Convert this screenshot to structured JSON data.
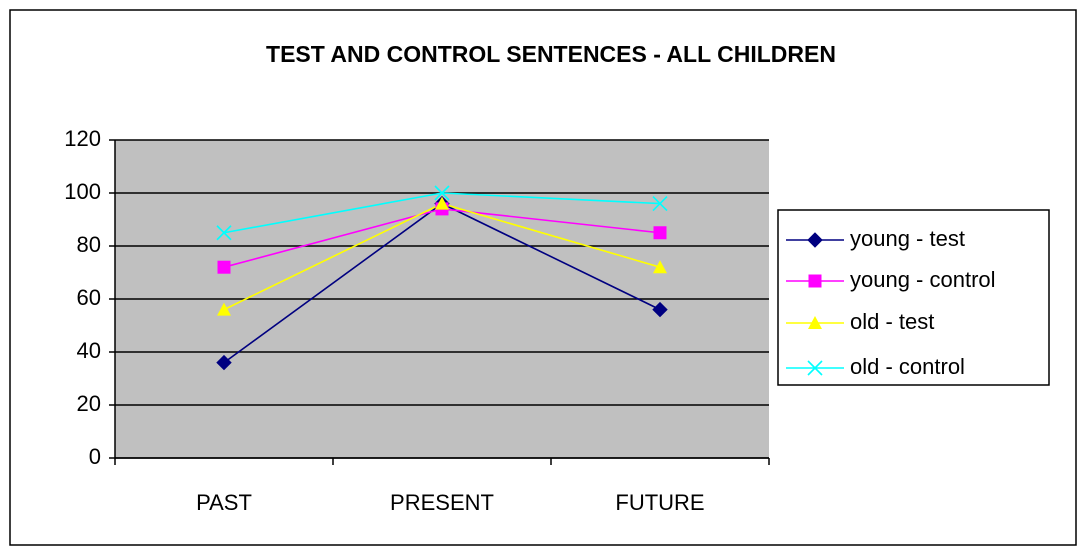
{
  "chart_data": {
    "type": "line",
    "title": "TEST AND CONTROL SENTENCES - ALL CHILDREN",
    "categories": [
      "PAST",
      "PRESENT",
      "FUTURE"
    ],
    "series": [
      {
        "name": "young - test",
        "color": "#000080",
        "marker": "diamond",
        "values": [
          36,
          96,
          56
        ]
      },
      {
        "name": "young - control",
        "color": "#ff00ff",
        "marker": "square",
        "values": [
          72,
          94,
          85
        ]
      },
      {
        "name": "old - test",
        "color": "#ffff00",
        "marker": "triangle",
        "values": [
          56,
          96,
          72
        ]
      },
      {
        "name": "old - control",
        "color": "#00ffff",
        "marker": "x",
        "values": [
          85,
          100,
          96
        ]
      }
    ],
    "ylim": [
      0,
      120
    ],
    "yticks": [
      0,
      20,
      40,
      60,
      80,
      100,
      120
    ],
    "grid": true,
    "legend": "right"
  }
}
